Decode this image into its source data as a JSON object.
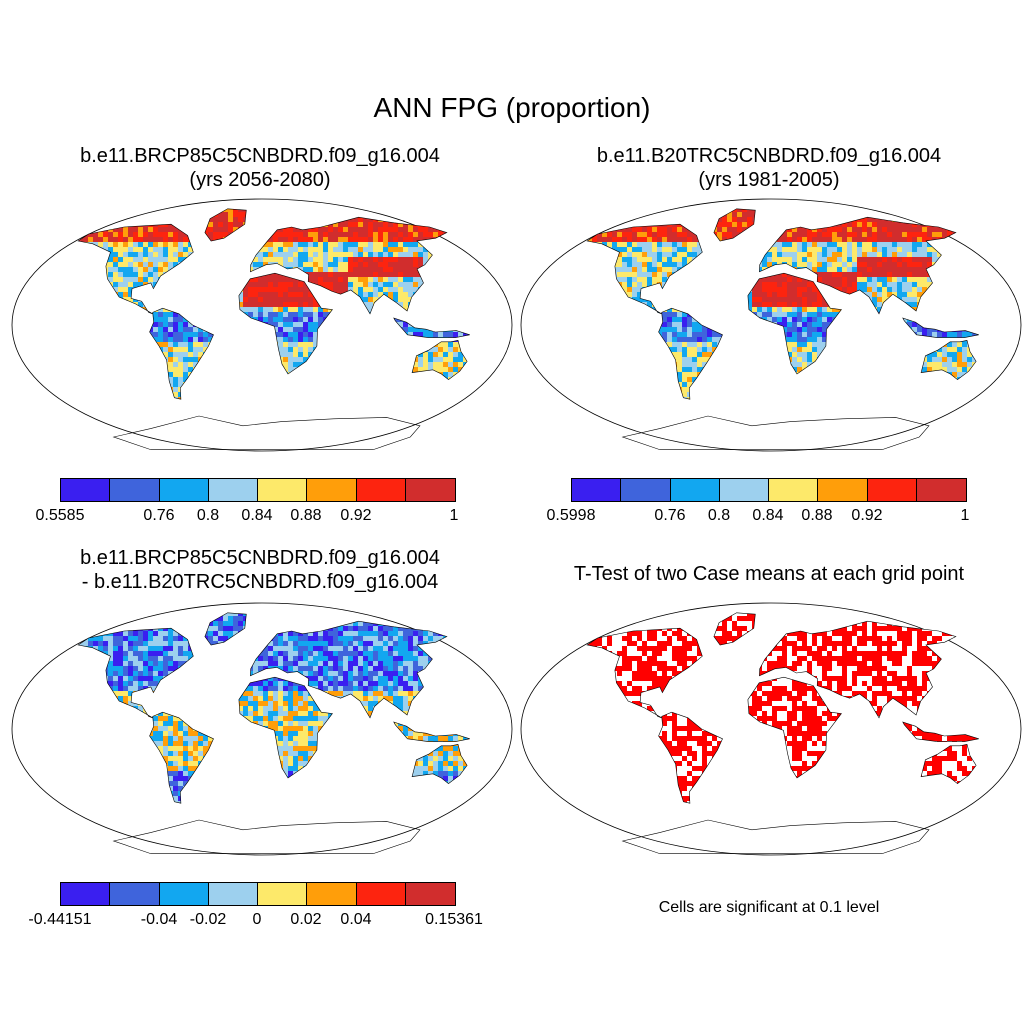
{
  "title": "ANN FPG (proportion)",
  "panels": [
    {
      "id": "p1",
      "title_line1": "b.e11.BRCP85C5CNBDRD.f09_g16.004",
      "title_line2": "(yrs 2056-2080)",
      "colorbar": {
        "colors": [
          "#3a1ff0",
          "#3f64dc",
          "#12a7f0",
          "#9dd0ee",
          "#fde96a",
          "#ff9e0a",
          "#fd240f",
          "#d12d2d"
        ],
        "tick_labels": [
          "0.5585",
          "0.76",
          "0.8",
          "0.84",
          "0.88",
          "0.92",
          "1"
        ]
      }
    },
    {
      "id": "p2",
      "title_line1": "b.e11.B20TRC5CNBDRD.f09_g16.004",
      "title_line2": "(yrs 1981-2005)",
      "colorbar": {
        "colors": [
          "#3a1ff0",
          "#3f64dc",
          "#12a7f0",
          "#9dd0ee",
          "#fde96a",
          "#ff9e0a",
          "#fd240f",
          "#d12d2d"
        ],
        "tick_labels": [
          "0.5998",
          "0.76",
          "0.8",
          "0.84",
          "0.88",
          "0.92",
          "1"
        ]
      }
    },
    {
      "id": "p3",
      "title_line1": "b.e11.BRCP85C5CNBDRD.f09_g16.004",
      "title_line2": "- b.e11.B20TRC5CNBDRD.f09_g16.004",
      "colorbar": {
        "colors": [
          "#3a1ff0",
          "#3f64dc",
          "#12a7f0",
          "#9dd0ee",
          "#fde96a",
          "#ff9e0a",
          "#fd240f",
          "#d12d2d"
        ],
        "tick_labels": [
          "-0.44151",
          "-0.04",
          "-0.02",
          "0",
          "0.02",
          "0.04",
          "0.15361"
        ]
      }
    },
    {
      "id": "p4",
      "title_line1": "T-Test of two Case means at each grid point",
      "note": "Cells are significant at 0.1 level"
    }
  ],
  "colors": {
    "significant": "#ff0000",
    "coast": "#000000"
  }
}
